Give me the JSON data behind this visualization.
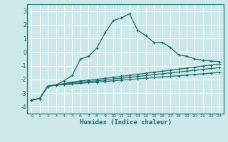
{
  "xlabel": "Humidex (Indice chaleur)",
  "bg_color": "#cde8ea",
  "grid_color": "#ffffff",
  "line_color": "#1a6b6b",
  "x_ticks": [
    0,
    1,
    2,
    3,
    4,
    5,
    6,
    7,
    8,
    9,
    10,
    11,
    12,
    13,
    14,
    15,
    16,
    17,
    18,
    19,
    20,
    21,
    22,
    23
  ],
  "y_ticks": [
    -4,
    -3,
    -2,
    -1,
    0,
    1,
    2,
    3
  ],
  "ylim": [
    -4.5,
    3.5
  ],
  "xlim": [
    -0.5,
    23.5
  ],
  "line1_x": [
    0,
    1,
    2,
    3,
    4,
    5,
    6,
    7,
    8,
    9,
    10,
    11,
    12,
    13,
    14,
    15,
    16,
    17,
    18,
    19,
    20,
    21,
    22,
    23
  ],
  "line1_y": [
    -3.5,
    -3.4,
    -2.5,
    -2.4,
    -2.1,
    -1.7,
    -0.5,
    -0.3,
    0.3,
    1.4,
    2.3,
    2.5,
    2.8,
    1.6,
    1.2,
    0.7,
    0.7,
    0.35,
    -0.2,
    -0.3,
    -0.5,
    -0.6,
    -0.65,
    -0.7
  ],
  "line2_x": [
    0,
    1,
    2,
    3,
    4,
    5,
    6,
    7,
    8,
    9,
    10,
    11,
    12,
    13,
    14,
    15,
    16,
    17,
    18,
    19,
    20,
    21,
    22,
    23
  ],
  "line2_y": [
    -3.5,
    -3.4,
    -2.5,
    -2.4,
    -2.3,
    -2.2,
    -2.1,
    -2.05,
    -2.0,
    -1.92,
    -1.85,
    -1.77,
    -1.7,
    -1.62,
    -1.55,
    -1.47,
    -1.4,
    -1.32,
    -1.25,
    -1.17,
    -1.1,
    -1.02,
    -0.95,
    -0.88
  ],
  "line3_x": [
    0,
    1,
    2,
    3,
    4,
    5,
    6,
    7,
    8,
    9,
    10,
    11,
    12,
    13,
    14,
    15,
    16,
    17,
    18,
    19,
    20,
    21,
    22,
    23
  ],
  "line3_y": [
    -3.5,
    -3.4,
    -2.5,
    -2.4,
    -2.35,
    -2.27,
    -2.2,
    -2.15,
    -2.1,
    -2.04,
    -1.97,
    -1.91,
    -1.85,
    -1.78,
    -1.72,
    -1.65,
    -1.59,
    -1.52,
    -1.46,
    -1.39,
    -1.33,
    -1.26,
    -1.2,
    -1.13
  ],
  "line4_x": [
    0,
    1,
    2,
    3,
    4,
    5,
    6,
    7,
    8,
    9,
    10,
    11,
    12,
    13,
    14,
    15,
    16,
    17,
    18,
    19,
    20,
    21,
    22,
    23
  ],
  "line4_y": [
    -3.5,
    -3.4,
    -2.5,
    -2.4,
    -2.38,
    -2.33,
    -2.28,
    -2.24,
    -2.19,
    -2.15,
    -2.1,
    -2.05,
    -2.01,
    -1.96,
    -1.91,
    -1.87,
    -1.82,
    -1.77,
    -1.73,
    -1.68,
    -1.63,
    -1.59,
    -1.54,
    -1.49
  ]
}
